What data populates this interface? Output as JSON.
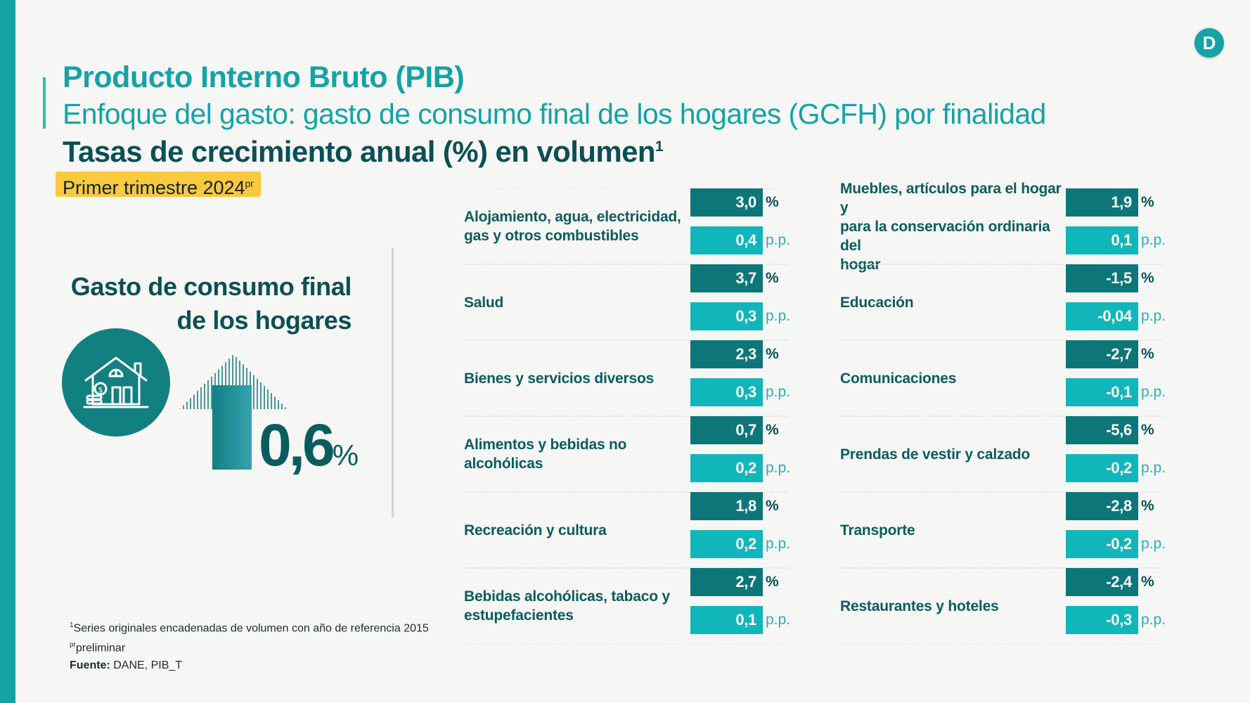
{
  "brand": {
    "logo_letter": "D",
    "accent_color": "#14a3a6",
    "dark_color": "#0d7679",
    "light_color": "#11b6bb",
    "highlight_color": "#fac93c"
  },
  "header": {
    "title": "Producto Interno Bruto (PIB)",
    "subtitle": "Enfoque del gasto: gasto de consumo final de los hogares (GCFH) por finalidad",
    "heading": "Tasas de crecimiento anual (%) en volumen",
    "heading_sup": "1",
    "period": "Primer trimestre 2024",
    "period_sup": "pr"
  },
  "summary": {
    "title_line1": "Gasto de consumo final",
    "title_line2": "de los hogares",
    "icon": "house-money-icon",
    "value": "0,6",
    "unit": "%"
  },
  "units": {
    "percent": "%",
    "pp": "p.p."
  },
  "left_items": [
    {
      "label_lines": [
        "Alojamiento, agua, electricidad,",
        "gas y otros combustibles"
      ],
      "growth": "3,0",
      "contribution": "0,4"
    },
    {
      "label_lines": [
        "Salud"
      ],
      "growth": "3,7",
      "contribution": "0,3"
    },
    {
      "label_lines": [
        "Bienes y servicios diversos"
      ],
      "growth": "2,3",
      "contribution": "0,3"
    },
    {
      "label_lines": [
        "Alimentos y bebidas no alcohólicas"
      ],
      "growth": "0,7",
      "contribution": "0,2"
    },
    {
      "label_lines": [
        "Recreación y cultura"
      ],
      "growth": "1,8",
      "contribution": "0,2"
    },
    {
      "label_lines": [
        "Bebidas alcohólicas, tabaco y",
        "estupefacientes"
      ],
      "growth": "2,7",
      "contribution": "0,1"
    }
  ],
  "right_items": [
    {
      "label_lines": [
        "Muebles, artículos para el hogar y",
        "para la conservación ordinaria del",
        "hogar"
      ],
      "growth": "1,9",
      "contribution": "0,1"
    },
    {
      "label_lines": [
        "Educación"
      ],
      "growth": "-1,5",
      "contribution": "-0,04"
    },
    {
      "label_lines": [
        "Comunicaciones"
      ],
      "growth": "-2,7",
      "contribution": "-0,1"
    },
    {
      "label_lines": [
        "Prendas de vestir y calzado"
      ],
      "growth": "-5,6",
      "contribution": "-0,2"
    },
    {
      "label_lines": [
        "Transporte"
      ],
      "growth": "-2,8",
      "contribution": "-0,2"
    },
    {
      "label_lines": [
        "Restaurantes y hoteles"
      ],
      "growth": "-2,4",
      "contribution": "-0,3"
    }
  ],
  "footnotes": {
    "note1_sup": "1",
    "note1": "Series originales encadenadas de volumen con año de referencia 2015",
    "note2_sup": "pr",
    "note2": "preliminar",
    "source_label": "Fuente:",
    "source": " DANE, PIB_T"
  }
}
